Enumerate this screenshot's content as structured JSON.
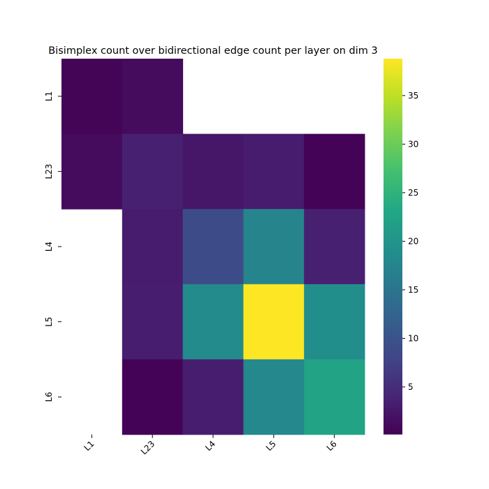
{
  "chart_data": {
    "type": "heatmap",
    "title": "Bisimplex count over bidirectional edge count per layer on dim 3",
    "row_labels": [
      "L1",
      "L23",
      "L4",
      "L5",
      "L6"
    ],
    "col_labels": [
      "L1",
      "L23",
      "L4",
      "L5",
      "L6"
    ],
    "values": [
      [
        0.5,
        1.2,
        null,
        null,
        null
      ],
      [
        1.2,
        3.5,
        2.5,
        3.0,
        0.3
      ],
      [
        null,
        3.0,
        9.0,
        17.5,
        3.5
      ],
      [
        null,
        3.3,
        18.5,
        38.8,
        19.0
      ],
      [
        null,
        0.3,
        3.3,
        18.0,
        22.5
      ]
    ],
    "colorbar": {
      "min": 0.1,
      "max": 38.8,
      "ticks": [
        5,
        10,
        15,
        20,
        25,
        30,
        35
      ],
      "colormap": "viridis"
    },
    "missing_color": "#ffffff",
    "xlabel": "",
    "ylabel": ""
  }
}
